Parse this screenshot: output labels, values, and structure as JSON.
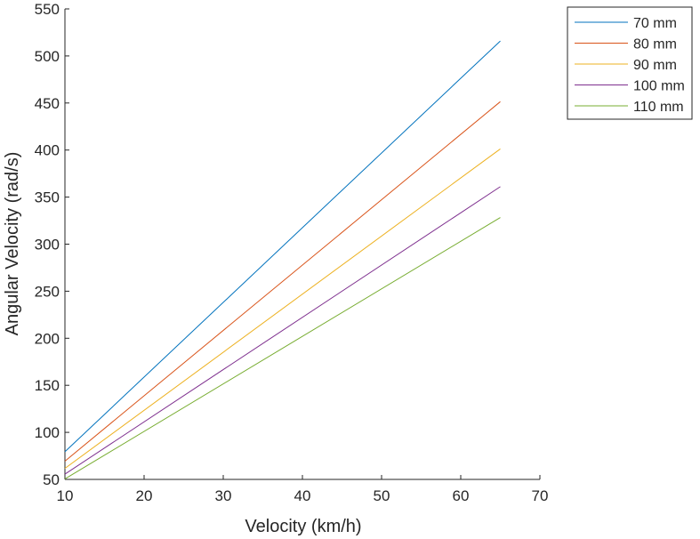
{
  "chart_data": {
    "type": "line",
    "xlabel": "Velocity (km/h)",
    "ylabel": "Angular Velocity (rad/s)",
    "xlim": [
      10,
      70
    ],
    "ylim": [
      50,
      550
    ],
    "xticks": [
      10,
      20,
      30,
      40,
      50,
      60,
      70
    ],
    "yticks": [
      50,
      100,
      150,
      200,
      250,
      300,
      350,
      400,
      450,
      500,
      550
    ],
    "grid": false,
    "legend_position": "outside-top-right",
    "series": [
      {
        "name": "70 mm",
        "color": "#0072BD",
        "x": [
          10,
          65
        ],
        "y": [
          79.4,
          515.9
        ]
      },
      {
        "name": "80 mm",
        "color": "#D95319",
        "x": [
          10,
          65
        ],
        "y": [
          69.4,
          451.4
        ]
      },
      {
        "name": "90 mm",
        "color": "#EDB120",
        "x": [
          10,
          65
        ],
        "y": [
          61.7,
          401.2
        ]
      },
      {
        "name": "100 mm",
        "color": "#7E2F8E",
        "x": [
          10,
          65
        ],
        "y": [
          55.6,
          361.1
        ]
      },
      {
        "name": "110 mm",
        "color": "#77AC30",
        "x": [
          10,
          65
        ],
        "y": [
          50.5,
          328.3
        ]
      }
    ]
  }
}
